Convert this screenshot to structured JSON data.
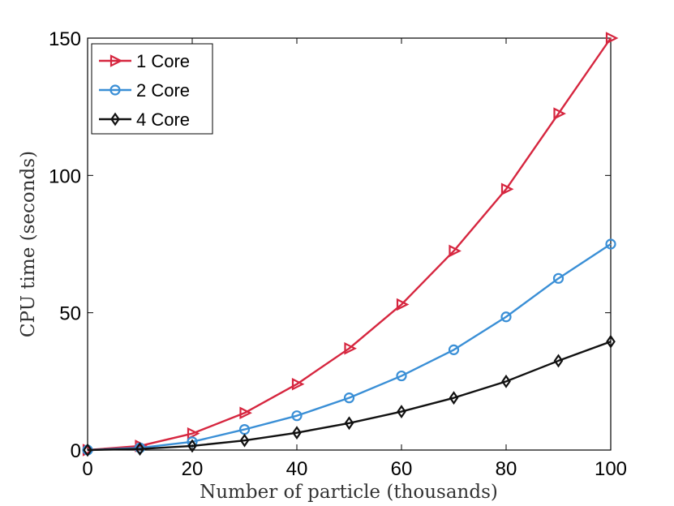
{
  "chart_data": {
    "type": "line",
    "title": "",
    "xlabel": "Number of particle (thousands)",
    "ylabel": "CPU time (seconds)",
    "xlim": [
      0,
      100
    ],
    "ylim": [
      0,
      150
    ],
    "xticks": [
      0,
      20,
      40,
      60,
      80,
      100
    ],
    "yticks": [
      0,
      50,
      100,
      150
    ],
    "x": [
      0,
      10,
      20,
      30,
      40,
      50,
      60,
      70,
      80,
      90,
      100
    ],
    "legend_position": "top-left",
    "grid": false,
    "series": [
      {
        "name": "1 Core",
        "color": "#d6263f",
        "marker": "triangle-right",
        "values": [
          0,
          1.5,
          6,
          13.5,
          24,
          37,
          53,
          72.5,
          95,
          122.5,
          150
        ]
      },
      {
        "name": "2 Core",
        "color": "#3a8fd6",
        "marker": "circle",
        "values": [
          0,
          0.8,
          3,
          7.5,
          12.5,
          19,
          27,
          36.5,
          48.5,
          62.5,
          75
        ]
      },
      {
        "name": "4 Core",
        "color": "#111111",
        "marker": "diamond",
        "values": [
          0,
          0.4,
          1.5,
          3.5,
          6.3,
          9.8,
          14,
          19,
          25,
          32.5,
          39.5
        ]
      }
    ]
  }
}
